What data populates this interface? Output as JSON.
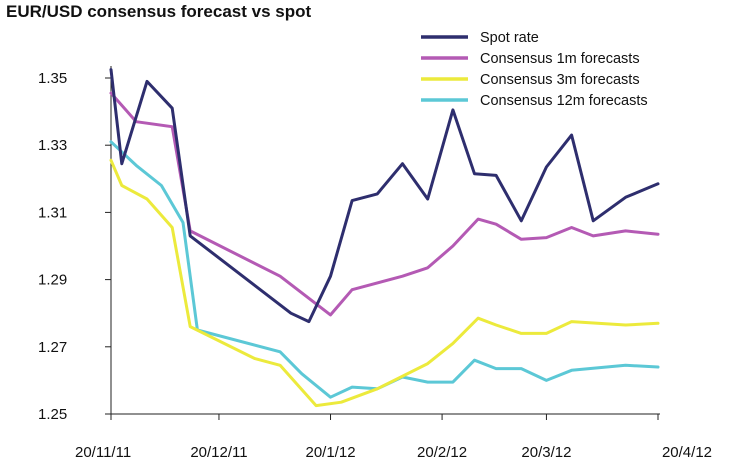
{
  "chart_data": {
    "type": "line",
    "title": "EUR/USD consensus forecast vs spot",
    "xlabel": "",
    "ylabel": "",
    "x": [
      "20/11/11",
      "27/11/11",
      "04/12/11",
      "13/12/11",
      "20/12/11",
      "26/12/11",
      "02/01/12",
      "09/01/12",
      "15/01/12",
      "20/01/12",
      "26/01/12",
      "02/02/12",
      "08/02/12",
      "15/02/12",
      "20/02/12",
      "27/02/12",
      "05/03/12",
      "12/03/12",
      "20/03/12",
      "27/03/12",
      "03/04/12",
      "10/04/12",
      "15/04/12",
      "20/04/12"
    ],
    "x_tick_labels": [
      "20/11/11",
      "20/12/11",
      "20/1/12",
      "20/2/12",
      "20/3/12",
      "20/4/12"
    ],
    "y_ticks": [
      1.25,
      1.27,
      1.29,
      1.31,
      1.33,
      1.35
    ],
    "y_tick_labels": [
      "1.25",
      "1.27",
      "1.29",
      "1.31",
      "1.33",
      "1.35"
    ],
    "ylim": [
      1.25,
      1.35
    ],
    "legend_position": "top-right",
    "grid": false,
    "series": [
      {
        "name": "Spot rate",
        "color": "#2e2e6e",
        "points": [
          [
            "20/11/11",
            1.3525
          ],
          [
            "23/11/11",
            1.3245
          ],
          [
            "30/11/11",
            1.349
          ],
          [
            "07/12/11",
            1.341
          ],
          [
            "12/12/11",
            1.303
          ],
          [
            "09/01/12",
            1.28
          ],
          [
            "14/01/12",
            1.2775
          ],
          [
            "20/01/12",
            1.291
          ],
          [
            "26/01/12",
            1.3135
          ],
          [
            "02/02/12",
            1.3155
          ],
          [
            "09/02/12",
            1.3245
          ],
          [
            "16/02/12",
            1.314
          ],
          [
            "23/02/12",
            1.3405
          ],
          [
            "29/02/12",
            1.3215
          ],
          [
            "06/03/12",
            1.321
          ],
          [
            "13/03/12",
            1.3075
          ],
          [
            "20/03/12",
            1.3235
          ],
          [
            "27/03/12",
            1.333
          ],
          [
            "02/04/12",
            1.3075
          ],
          [
            "11/04/12",
            1.3145
          ],
          [
            "20/04/12",
            1.3185
          ]
        ]
      },
      {
        "name": "Consensus 1m forecasts",
        "color": "#b45ab4",
        "points": [
          [
            "20/11/11",
            1.3455
          ],
          [
            "27/11/11",
            1.337
          ],
          [
            "07/12/11",
            1.3355
          ],
          [
            "12/12/11",
            1.3045
          ],
          [
            "06/01/12",
            1.291
          ],
          [
            "20/01/12",
            1.2795
          ],
          [
            "26/01/12",
            1.287
          ],
          [
            "09/02/12",
            1.291
          ],
          [
            "16/02/12",
            1.2935
          ],
          [
            "23/02/12",
            1.3
          ],
          [
            "01/03/12",
            1.308
          ],
          [
            "06/03/12",
            1.3065
          ],
          [
            "13/03/12",
            1.302
          ],
          [
            "20/03/12",
            1.3025
          ],
          [
            "27/03/12",
            1.3055
          ],
          [
            "02/04/12",
            1.303
          ],
          [
            "11/04/12",
            1.3045
          ],
          [
            "20/04/12",
            1.3035
          ]
        ]
      },
      {
        "name": "Consensus 3m forecasts",
        "color": "#ecea3c",
        "points": [
          [
            "20/11/11",
            1.3255
          ],
          [
            "23/11/11",
            1.318
          ],
          [
            "30/11/11",
            1.314
          ],
          [
            "07/12/11",
            1.3055
          ],
          [
            "12/12/11",
            1.276
          ],
          [
            "30/12/11",
            1.2665
          ],
          [
            "06/01/12",
            1.2645
          ],
          [
            "16/01/12",
            1.2525
          ],
          [
            "23/01/12",
            1.2535
          ],
          [
            "02/02/12",
            1.2575
          ],
          [
            "16/02/12",
            1.265
          ],
          [
            "23/02/12",
            1.271
          ],
          [
            "01/03/12",
            1.2785
          ],
          [
            "06/03/12",
            1.2765
          ],
          [
            "13/03/12",
            1.274
          ],
          [
            "20/03/12",
            1.274
          ],
          [
            "27/03/12",
            1.2775
          ],
          [
            "11/04/12",
            1.2765
          ],
          [
            "20/04/12",
            1.277
          ]
        ]
      },
      {
        "name": "Consensus 12m forecasts",
        "color": "#5cc8d6",
        "points": [
          [
            "20/11/11",
            1.331
          ],
          [
            "27/11/11",
            1.324
          ],
          [
            "04/12/11",
            1.318
          ],
          [
            "10/12/11",
            1.307
          ],
          [
            "14/12/11",
            1.275
          ],
          [
            "06/01/12",
            1.2685
          ],
          [
            "12/01/12",
            1.262
          ],
          [
            "20/01/12",
            1.255
          ],
          [
            "26/01/12",
            1.258
          ],
          [
            "02/02/12",
            1.2575
          ],
          [
            "09/02/12",
            1.261
          ],
          [
            "16/02/12",
            1.2595
          ],
          [
            "23/02/12",
            1.2595
          ],
          [
            "29/02/12",
            1.266
          ],
          [
            "06/03/12",
            1.2635
          ],
          [
            "13/03/12",
            1.2635
          ],
          [
            "20/03/12",
            1.26
          ],
          [
            "27/03/12",
            1.263
          ],
          [
            "11/04/12",
            1.2645
          ],
          [
            "20/04/12",
            1.264
          ]
        ]
      }
    ]
  }
}
